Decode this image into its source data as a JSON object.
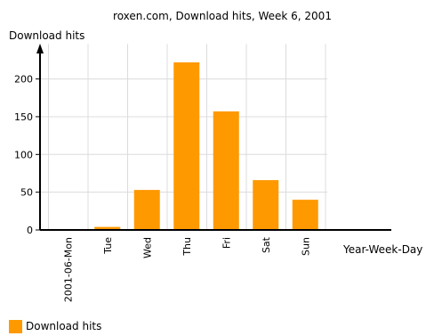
{
  "chart_data": {
    "type": "bar",
    "title": "roxen.com, Download hits, Week 6, 2001",
    "ylabel": "Download hits",
    "xlabel": "Year-Week-Day",
    "categories": [
      "2001-06-Mon",
      "Tue",
      "Wed",
      "Thu",
      "Fri",
      "Sat",
      "Sun"
    ],
    "series": [
      {
        "name": "Download hits",
        "values": [
          0,
          4,
          53,
          222,
          157,
          66,
          40
        ]
      }
    ],
    "ylim": [
      0,
      250
    ],
    "yticks": [
      "0",
      "50",
      "100",
      "150",
      "200"
    ],
    "grid": true,
    "legend_position": "bottom-left",
    "bar_color": "#ff9900"
  }
}
